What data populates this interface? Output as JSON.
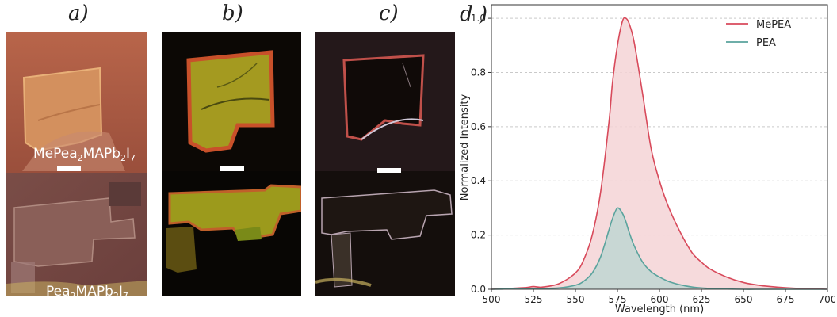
{
  "panels": {
    "a": {
      "label": "a)",
      "top_caption": {
        "base": "MePea",
        "s1": "2",
        "mid": "MAPb",
        "s2": "2",
        "el": "I",
        "s3": "7"
      },
      "bottom_caption": {
        "base": "Pea",
        "s1": "2",
        "mid": "MAPb",
        "s2": "2",
        "el": "I",
        "s3": "7"
      }
    },
    "b": {
      "label": "b)"
    },
    "c": {
      "label": "c)"
    },
    "d": {
      "label": "d )"
    }
  },
  "chart_data": {
    "type": "area",
    "xlabel": "Wavelength (nm)",
    "ylabel": "Normalized Intensity",
    "xlim": [
      500,
      700
    ],
    "ylim": [
      0,
      1.05
    ],
    "xticks": [
      500,
      525,
      550,
      575,
      600,
      625,
      650,
      675,
      700
    ],
    "yticks": [
      0.0,
      0.2,
      0.4,
      0.6,
      0.8,
      1.0
    ],
    "grid": "horizontal dashed",
    "legend": "top-right",
    "x": [
      500,
      510,
      520,
      525,
      530,
      540,
      550,
      555,
      560,
      565,
      570,
      572,
      575,
      578,
      580,
      582,
      585,
      590,
      595,
      600,
      605,
      610,
      615,
      620,
      625,
      630,
      640,
      650,
      660,
      670,
      680,
      690,
      700
    ],
    "series": [
      {
        "name": "MePEA",
        "color": "#d84a5b",
        "fill": "#f4d3d6",
        "values": [
          0.0,
          0.003,
          0.006,
          0.01,
          0.008,
          0.02,
          0.06,
          0.11,
          0.2,
          0.36,
          0.62,
          0.76,
          0.9,
          0.99,
          1.0,
          0.98,
          0.91,
          0.72,
          0.52,
          0.4,
          0.31,
          0.24,
          0.18,
          0.13,
          0.1,
          0.075,
          0.045,
          0.025,
          0.014,
          0.008,
          0.004,
          0.002,
          0.0
        ]
      },
      {
        "name": "PEA",
        "color": "#5aa39d",
        "fill": "#bfd6d2",
        "values": [
          0.0,
          0.001,
          0.002,
          0.003,
          0.003,
          0.005,
          0.015,
          0.03,
          0.06,
          0.12,
          0.22,
          0.26,
          0.3,
          0.28,
          0.25,
          0.21,
          0.16,
          0.1,
          0.065,
          0.045,
          0.03,
          0.02,
          0.013,
          0.008,
          0.005,
          0.003,
          0.001,
          0.0,
          0.0,
          0.0,
          0.0,
          0.0,
          0.0
        ]
      }
    ]
  }
}
